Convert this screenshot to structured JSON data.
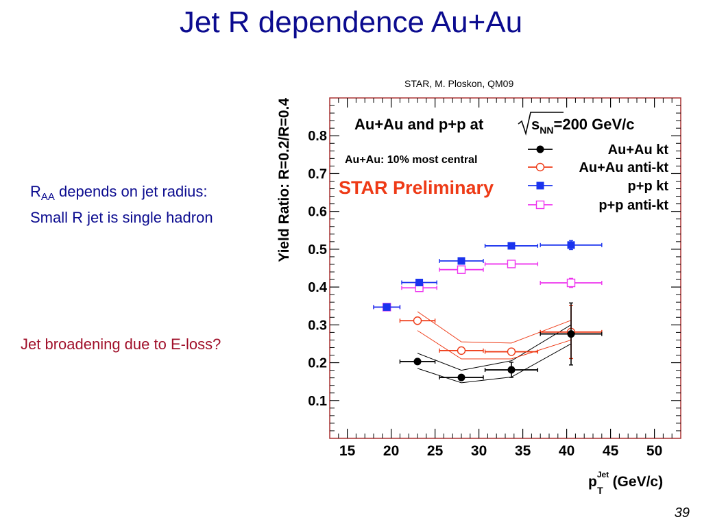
{
  "slide": {
    "title": "Jet R dependence Au+Au",
    "credit": "STAR, M. Ploskon, QM09",
    "note1_prefix": "R",
    "note1_sub": "AA",
    "note1_rest": " depends on jet radius:",
    "note2": "Small R jet is single hadron",
    "note3": "Jet broadening due to E-loss?",
    "page_number": "39"
  },
  "chart_data": {
    "type": "scatter",
    "title_main": "Au+Au and p+p at ",
    "title_sqrt_symbol": "s",
    "title_sqrt_sub": "NN",
    "title_energy": "=200 GeV/c",
    "centrality_text": "Au+Au: 10% most central",
    "preliminary_text": "STAR Preliminary",
    "ylabel": "Yield Ratio: R=0.2/R=0.4",
    "xlabel_main": "p",
    "xlabel_sup": "Jet",
    "xlabel_sub": "T",
    "xlabel_unit": " (GeV/c)",
    "xlim": [
      13,
      53
    ],
    "ylim": [
      0,
      0.9
    ],
    "xticks": [
      15,
      20,
      25,
      30,
      35,
      40,
      45,
      50
    ],
    "xtick_labels": [
      "15",
      "20",
      "25",
      "30",
      "35",
      "40",
      "45",
      "50"
    ],
    "yticks": [
      0.1,
      0.2,
      0.3,
      0.4,
      0.5,
      0.6,
      0.7,
      0.8
    ],
    "ytick_labels": [
      "0.1",
      "0.2",
      "0.3",
      "0.4",
      "0.5",
      "0.6",
      "0.7",
      "0.8"
    ],
    "grid": false,
    "legend_position": "top-right",
    "colors": {
      "au_kt": "#000000",
      "au_antikt": "#ee3a16",
      "pp_kt": "#1a33ee",
      "pp_antikt": "#ee33ee",
      "frame": "#a83030",
      "preliminary": "#ee3a16",
      "credit_blue": "#0b0b8f",
      "note_red": "#a0102a"
    },
    "series": [
      {
        "name": "Au+Au kt",
        "color": "#000000",
        "marker": "filled-circle",
        "points": [
          {
            "x": 23.0,
            "y": 0.203,
            "xerr": 2.0,
            "yerr": 0
          },
          {
            "x": 28.0,
            "y": 0.161,
            "xerr": 2.5,
            "yerr": 0
          },
          {
            "x": 33.7,
            "y": 0.181,
            "xerr": 3.0,
            "yerr": 0.02
          },
          {
            "x": 40.5,
            "y": 0.276,
            "xerr": 3.5,
            "yerr": 0.082
          }
        ],
        "band_upper": [
          0.225,
          0.18,
          0.205,
          0.3
        ],
        "band_lower": [
          0.185,
          0.147,
          0.162,
          0.25
        ]
      },
      {
        "name": "Au+Au anti-kt",
        "color": "#ee3a16",
        "marker": "open-circle",
        "points": [
          {
            "x": 23.0,
            "y": 0.311,
            "xerr": 2.0,
            "yerr": 0
          },
          {
            "x": 28.0,
            "y": 0.232,
            "xerr": 2.5,
            "yerr": 0
          },
          {
            "x": 33.7,
            "y": 0.229,
            "xerr": 3.0,
            "yerr": 0
          },
          {
            "x": 40.5,
            "y": 0.281,
            "xerr": 3.5,
            "yerr": 0.07
          }
        ],
        "band_upper": [
          0.335,
          0.255,
          0.252,
          0.312
        ],
        "band_lower": [
          0.285,
          0.21,
          0.21,
          0.26
        ]
      },
      {
        "name": "p+p kt",
        "color": "#1a33ee",
        "marker": "filled-square",
        "points": [
          {
            "x": 19.5,
            "y": 0.347,
            "xerr": 1.5,
            "yerr": 0
          },
          {
            "x": 23.2,
            "y": 0.412,
            "xerr": 2.0,
            "yerr": 0
          },
          {
            "x": 28.0,
            "y": 0.469,
            "xerr": 2.5,
            "yerr": 0
          },
          {
            "x": 33.7,
            "y": 0.509,
            "xerr": 3.0,
            "yerr": 0
          },
          {
            "x": 40.5,
            "y": 0.511,
            "xerr": 3.5,
            "yerr": 0.012
          }
        ]
      },
      {
        "name": "p+p anti-kt",
        "color": "#ee33ee",
        "marker": "open-square",
        "points": [
          {
            "x": 19.5,
            "y": 0.347,
            "xerr": 1.5,
            "yerr": 0
          },
          {
            "x": 23.2,
            "y": 0.398,
            "xerr": 2.0,
            "yerr": 0
          },
          {
            "x": 28.0,
            "y": 0.446,
            "xerr": 2.5,
            "yerr": 0
          },
          {
            "x": 33.7,
            "y": 0.461,
            "xerr": 3.0,
            "yerr": 0
          },
          {
            "x": 40.5,
            "y": 0.411,
            "xerr": 3.5,
            "yerr": 0.012
          }
        ]
      }
    ]
  }
}
